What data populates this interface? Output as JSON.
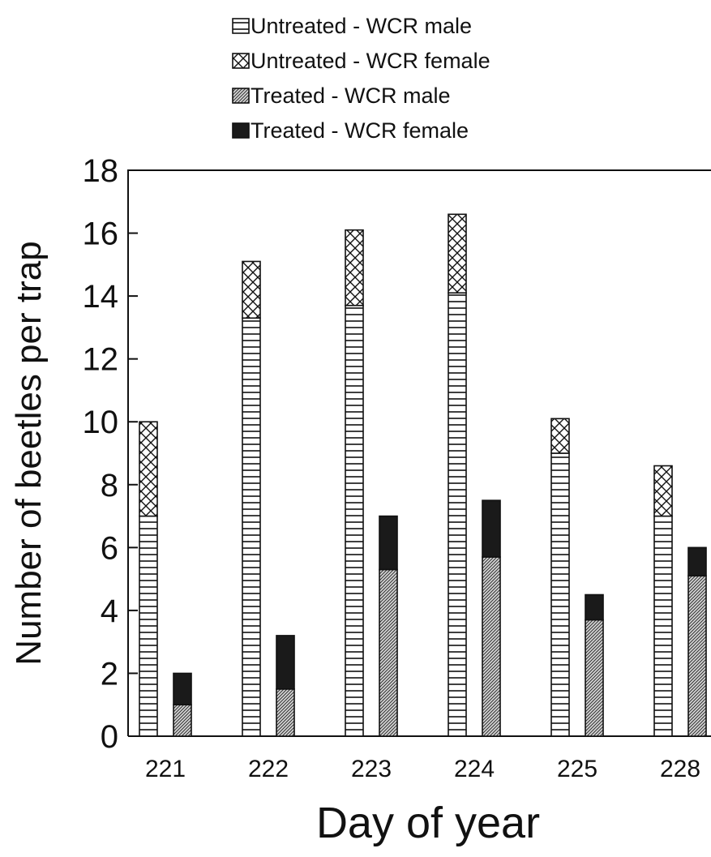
{
  "chart_data": {
    "type": "bar",
    "stacked": true,
    "categories": [
      "221",
      "222",
      "223",
      "224",
      "225",
      "228"
    ],
    "groups": [
      {
        "name": "Untreated",
        "series": [
          {
            "name": "Untreated - WCR male",
            "pattern": "horizontal-lines",
            "values": [
              7.0,
              13.3,
              13.7,
              14.1,
              9.0,
              7.0
            ]
          },
          {
            "name": "Untreated - WCR female",
            "pattern": "crosshatch",
            "values": [
              3.0,
              1.8,
              2.4,
              2.5,
              1.1,
              1.6
            ]
          }
        ]
      },
      {
        "name": "Treated",
        "series": [
          {
            "name": "Treated - WCR male",
            "pattern": "fine-diagonal",
            "values": [
              1.0,
              1.5,
              5.3,
              5.7,
              3.7,
              5.1
            ]
          },
          {
            "name": "Treated - WCR female",
            "pattern": "solid-black",
            "values": [
              1.0,
              1.7,
              1.7,
              1.8,
              0.8,
              0.9
            ]
          }
        ]
      }
    ],
    "xlabel": "Day of year",
    "ylabel": "Number of beetles per trap",
    "ylim": [
      0,
      18
    ],
    "yticks": [
      0,
      2,
      4,
      6,
      8,
      10,
      12,
      14,
      16,
      18
    ],
    "grid": false,
    "legend": "top",
    "colors": {
      "stroke": "#111111",
      "fill": "#ffffff",
      "solid": "#1a1a1a"
    }
  }
}
